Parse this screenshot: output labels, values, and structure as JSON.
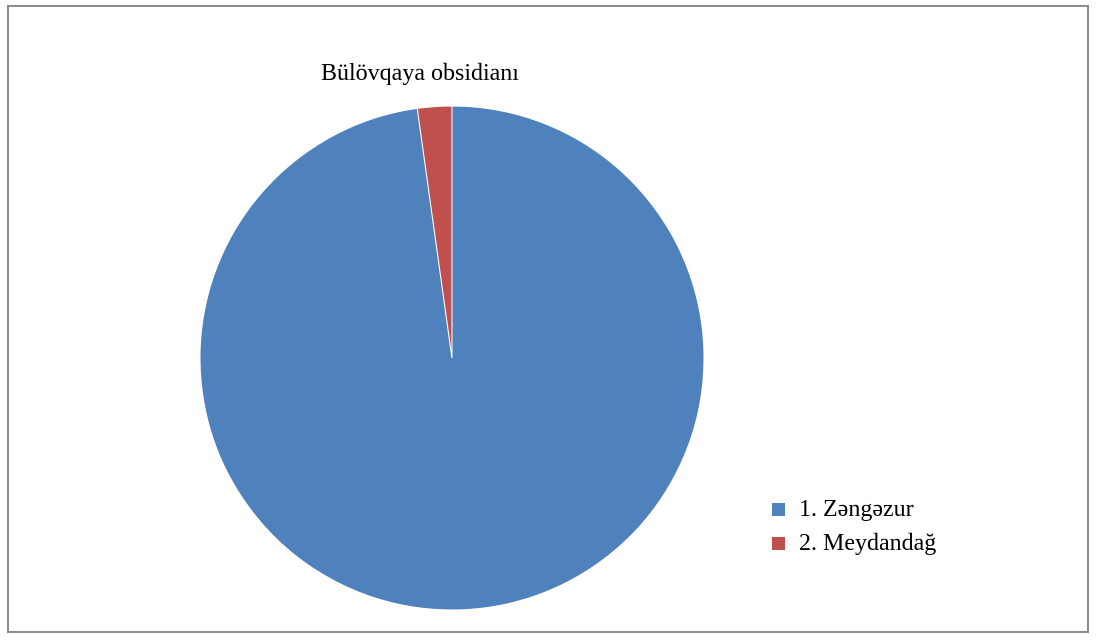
{
  "chart_data": {
    "type": "pie",
    "title": "Bülövqaya obsidianı",
    "categories": [
      "1.  Zəngəzur",
      "2. Meydandağ"
    ],
    "values": [
      97.8,
      2.2
    ],
    "colors": [
      "#4f81bd",
      "#c0504d"
    ],
    "legend_position": "right-bottom"
  }
}
